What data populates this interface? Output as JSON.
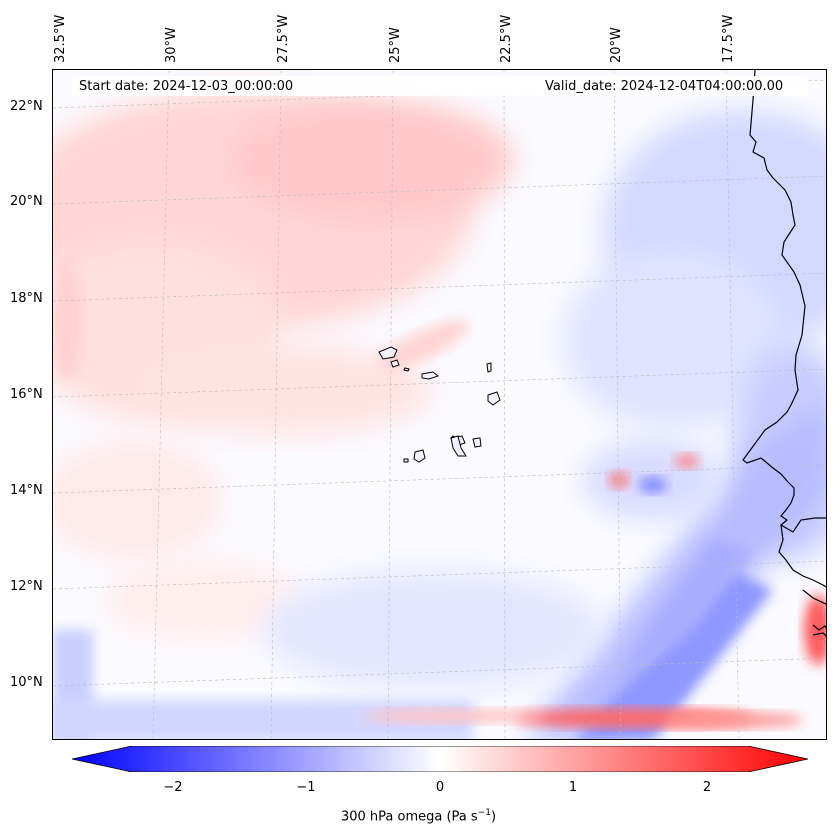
{
  "map": {
    "start_date": "Start date: 2024-12-03_00:00:00",
    "valid_date": "Valid_date: 2024-12-04T04:00:00.00",
    "lon_labels": [
      "32.5°W",
      "30°W",
      "27.5°W",
      "25°W",
      "22.5°W",
      "20°W",
      "17.5°W"
    ],
    "lat_labels": [
      "22°N",
      "20°N",
      "18°N",
      "16°N",
      "14°N",
      "12°N",
      "10°N"
    ],
    "field": "300 hPa omega",
    "colormap": "bwr",
    "colors": {
      "negative": "#0000ff",
      "zero": "#ffffff",
      "positive": "#ff0000",
      "coast": "#000000"
    }
  },
  "colorbar": {
    "ticks": [
      "−2",
      "−1",
      "0",
      "1",
      "2"
    ],
    "tick_values": [
      -2,
      -1,
      0,
      1,
      2
    ],
    "range": [
      -2.5,
      2.5
    ],
    "label_main": "300 hPa omega (Pa s",
    "label_sup": "−1",
    "label_end": ")"
  }
}
